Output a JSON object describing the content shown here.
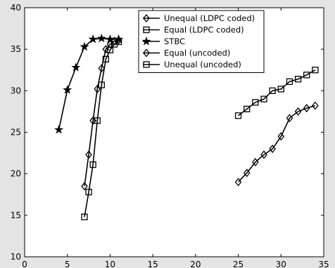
{
  "chart_data": {
    "type": "line",
    "title": "",
    "xlabel": "",
    "ylabel": "",
    "xlim": [
      0,
      35
    ],
    "ylim": [
      10,
      40
    ],
    "xticks": [
      0,
      5,
      10,
      15,
      20,
      25,
      30,
      35
    ],
    "yticks": [
      10,
      15,
      20,
      25,
      30,
      35,
      40
    ],
    "xtick_labels": [
      "0",
      "5",
      "10",
      "15",
      "20",
      "25",
      "30",
      "35"
    ],
    "ytick_labels": [
      "10",
      "15",
      "20",
      "25",
      "30",
      "35",
      "40"
    ],
    "grid": false,
    "legend_position": "top-right",
    "series": [
      {
        "name": "Unequal (LDPC coded)",
        "marker": "diamond",
        "points": [
          [
            7.0,
            18.5
          ],
          [
            7.5,
            22.3
          ],
          [
            8.0,
            26.4
          ],
          [
            8.5,
            30.2
          ],
          [
            9.0,
            32.7
          ],
          [
            9.5,
            35.0
          ],
          [
            10.0,
            35.6
          ],
          [
            10.5,
            36.0
          ],
          [
            11.0,
            36.1
          ]
        ]
      },
      {
        "name": "Equal (LDPC coded)",
        "marker": "square",
        "points": [
          [
            7.0,
            14.8
          ],
          [
            7.5,
            17.8
          ],
          [
            8.0,
            21.1
          ],
          [
            8.5,
            26.4
          ],
          [
            9.0,
            30.7
          ],
          [
            9.5,
            33.8
          ],
          [
            10.0,
            34.9
          ],
          [
            10.5,
            35.6
          ],
          [
            11.0,
            35.9
          ]
        ]
      },
      {
        "name": "STBC",
        "marker": "star",
        "points": [
          [
            4.0,
            25.3
          ],
          [
            5.0,
            30.1
          ],
          [
            6.0,
            32.8
          ],
          [
            7.0,
            35.3
          ],
          [
            8.0,
            36.2
          ],
          [
            9.0,
            36.3
          ],
          [
            10.0,
            36.2
          ],
          [
            11.0,
            36.2
          ]
        ]
      },
      {
        "name": "Equal (uncoded)",
        "marker": "diamond",
        "points": [
          [
            25,
            19.0
          ],
          [
            26,
            20.1
          ],
          [
            27,
            21.4
          ],
          [
            28,
            22.3
          ],
          [
            29,
            23.0
          ],
          [
            30,
            24.5
          ],
          [
            31,
            26.7
          ],
          [
            32,
            27.5
          ],
          [
            33,
            27.9
          ],
          [
            34,
            28.2
          ]
        ]
      },
      {
        "name": "Unequal (uncoded)",
        "marker": "square",
        "points": [
          [
            25,
            27.0
          ],
          [
            26,
            27.8
          ],
          [
            27,
            28.6
          ],
          [
            28,
            29.0
          ],
          [
            29,
            30.0
          ],
          [
            30,
            30.2
          ],
          [
            31,
            31.1
          ],
          [
            32,
            31.4
          ],
          [
            33,
            31.9
          ],
          [
            34,
            32.5
          ]
        ]
      }
    ]
  }
}
